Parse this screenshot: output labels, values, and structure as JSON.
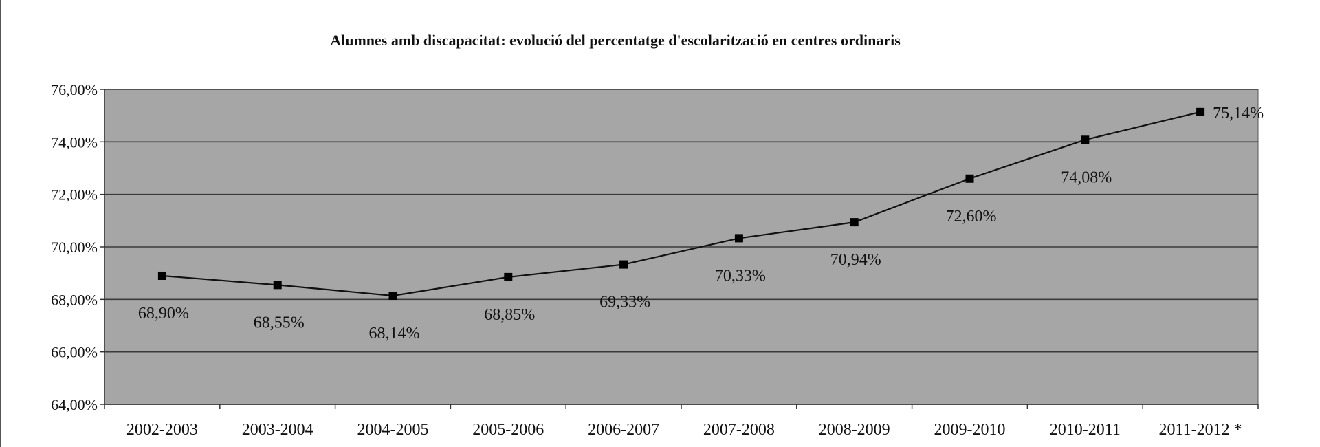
{
  "chart_data": {
    "type": "line",
    "title": "Alumnes amb discapacitat: evolució del percentatge d'escolarització en centres ordinaris",
    "xlabel": "",
    "ylabel": "",
    "categories": [
      "2002-2003",
      "2003-2004",
      "2004-2005",
      "2005-2006",
      "2006-2007",
      "2007-2008",
      "2008-2009",
      "2009-2010",
      "2010-2011",
      "2011-2012 *"
    ],
    "series": [
      {
        "values": [
          68.9,
          68.55,
          68.14,
          68.85,
          69.33,
          70.33,
          70.94,
          72.6,
          74.08,
          75.14
        ],
        "labels": [
          "68,90%",
          "68,55%",
          "68,14%",
          "68,85%",
          "69,33%",
          "70,33%",
          "70,94%",
          "72,60%",
          "74,08%",
          "75,14%"
        ]
      }
    ],
    "ylim": [
      64,
      76
    ],
    "yticks": [
      64,
      66,
      68,
      70,
      72,
      74,
      76
    ],
    "ytick_labels": [
      "64,00%",
      "66,00%",
      "68,00%",
      "70,00%",
      "72,00%",
      "74,00%",
      "76,00%"
    ],
    "grid": true,
    "legend": "none",
    "colors": {
      "plot_bg": "#a6a6a6",
      "grid": "#3a3a3a",
      "line": "#111111",
      "marker": "#000000"
    }
  }
}
